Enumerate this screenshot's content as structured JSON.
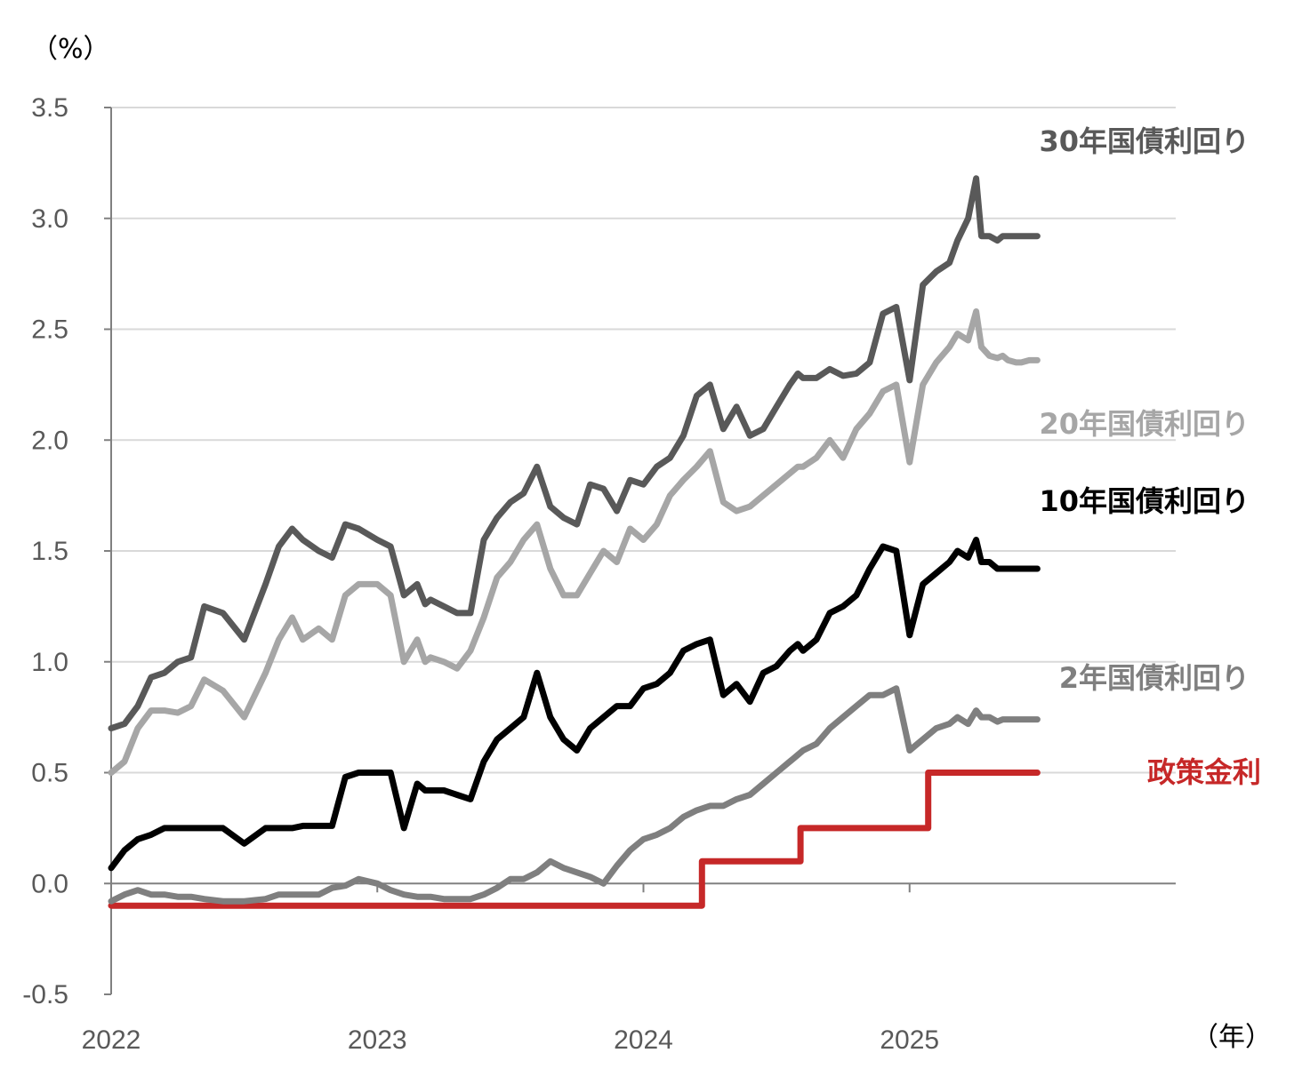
{
  "chart_data": {
    "type": "line",
    "y_unit_label": "（%）",
    "x_unit_label": "（年）",
    "ylim": [
      -0.5,
      3.5
    ],
    "yticks": [
      "3.5",
      "3.0",
      "2.5",
      "2.0",
      "1.5",
      "1.0",
      "0.5",
      "0.0",
      "-0.5"
    ],
    "ytick_values": [
      3.5,
      3.0,
      2.5,
      2.0,
      1.5,
      1.0,
      0.5,
      0.0,
      -0.5
    ],
    "negative_tick_color": "#e00000",
    "xlim": [
      2022.0,
      2026.0
    ],
    "xticks": [
      "2022",
      "2023",
      "2024",
      "2025"
    ],
    "xtick_values": [
      2022,
      2023,
      2024,
      2025
    ],
    "grid": true,
    "series": [
      {
        "name": "30年国債利回り",
        "color": "#595959",
        "x": [
          2022.0,
          2022.05,
          2022.1,
          2022.15,
          2022.2,
          2022.25,
          2022.3,
          2022.35,
          2022.42,
          2022.5,
          2022.58,
          2022.63,
          2022.68,
          2022.72,
          2022.78,
          2022.83,
          2022.88,
          2022.93,
          2023.0,
          2023.05,
          2023.1,
          2023.15,
          2023.18,
          2023.2,
          2023.25,
          2023.3,
          2023.35,
          2023.4,
          2023.45,
          2023.5,
          2023.55,
          2023.6,
          2023.65,
          2023.7,
          2023.75,
          2023.8,
          2023.85,
          2023.9,
          2023.95,
          2024.0,
          2024.05,
          2024.1,
          2024.15,
          2024.2,
          2024.25,
          2024.3,
          2024.35,
          2024.4,
          2024.45,
          2024.5,
          2024.55,
          2024.58,
          2024.6,
          2024.65,
          2024.7,
          2024.75,
          2024.8,
          2024.85,
          2024.9,
          2024.95,
          2025.0,
          2025.05,
          2025.1,
          2025.15,
          2025.18,
          2025.22,
          2025.25,
          2025.27,
          2025.3,
          2025.33,
          2025.35,
          2025.37,
          2025.4,
          2025.42,
          2025.45,
          2025.48
        ],
        "values": [
          0.7,
          0.72,
          0.8,
          0.93,
          0.95,
          1.0,
          1.02,
          1.25,
          1.22,
          1.1,
          1.35,
          1.52,
          1.6,
          1.55,
          1.5,
          1.47,
          1.62,
          1.6,
          1.55,
          1.52,
          1.3,
          1.35,
          1.26,
          1.28,
          1.25,
          1.22,
          1.22,
          1.55,
          1.65,
          1.72,
          1.76,
          1.88,
          1.7,
          1.65,
          1.62,
          1.8,
          1.78,
          1.68,
          1.82,
          1.8,
          1.88,
          1.92,
          2.02,
          2.2,
          2.25,
          2.05,
          2.15,
          2.02,
          2.05,
          2.15,
          2.25,
          2.3,
          2.28,
          2.28,
          2.32,
          2.29,
          2.3,
          2.35,
          2.57,
          2.6,
          2.27,
          2.7,
          2.76,
          2.8,
          2.9,
          3.0,
          3.18,
          2.92,
          2.92,
          2.9,
          2.92,
          2.92,
          2.92,
          2.92,
          2.92,
          2.92
        ]
      },
      {
        "name": "20年国債利回り",
        "color": "#a6a6a6",
        "x": [
          2022.0,
          2022.05,
          2022.1,
          2022.15,
          2022.2,
          2022.25,
          2022.3,
          2022.35,
          2022.42,
          2022.5,
          2022.58,
          2022.63,
          2022.68,
          2022.72,
          2022.78,
          2022.83,
          2022.88,
          2022.93,
          2023.0,
          2023.05,
          2023.1,
          2023.15,
          2023.18,
          2023.2,
          2023.25,
          2023.3,
          2023.35,
          2023.4,
          2023.45,
          2023.5,
          2023.55,
          2023.6,
          2023.65,
          2023.7,
          2023.75,
          2023.8,
          2023.85,
          2023.9,
          2023.95,
          2024.0,
          2024.05,
          2024.1,
          2024.15,
          2024.2,
          2024.25,
          2024.3,
          2024.35,
          2024.4,
          2024.45,
          2024.5,
          2024.55,
          2024.58,
          2024.6,
          2024.65,
          2024.7,
          2024.75,
          2024.8,
          2024.85,
          2024.9,
          2024.95,
          2025.0,
          2025.05,
          2025.1,
          2025.15,
          2025.18,
          2025.22,
          2025.25,
          2025.27,
          2025.3,
          2025.33,
          2025.35,
          2025.37,
          2025.4,
          2025.42,
          2025.45,
          2025.48
        ],
        "values": [
          0.5,
          0.55,
          0.7,
          0.78,
          0.78,
          0.77,
          0.8,
          0.92,
          0.87,
          0.75,
          0.95,
          1.1,
          1.2,
          1.1,
          1.15,
          1.1,
          1.3,
          1.35,
          1.35,
          1.3,
          1.0,
          1.1,
          1.0,
          1.02,
          1.0,
          0.97,
          1.05,
          1.2,
          1.38,
          1.45,
          1.55,
          1.62,
          1.42,
          1.3,
          1.3,
          1.4,
          1.5,
          1.45,
          1.6,
          1.55,
          1.62,
          1.75,
          1.82,
          1.88,
          1.95,
          1.72,
          1.68,
          1.7,
          1.75,
          1.8,
          1.85,
          1.88,
          1.88,
          1.92,
          2.0,
          1.92,
          2.05,
          2.12,
          2.22,
          2.25,
          1.9,
          2.25,
          2.35,
          2.42,
          2.48,
          2.45,
          2.58,
          2.42,
          2.38,
          2.37,
          2.38,
          2.36,
          2.35,
          2.35,
          2.36,
          2.36
        ]
      },
      {
        "name": "10年国債利回り",
        "color": "#000000",
        "x": [
          2022.0,
          2022.05,
          2022.1,
          2022.15,
          2022.2,
          2022.25,
          2022.3,
          2022.35,
          2022.42,
          2022.5,
          2022.58,
          2022.63,
          2022.68,
          2022.72,
          2022.78,
          2022.83,
          2022.88,
          2022.93,
          2023.0,
          2023.05,
          2023.1,
          2023.15,
          2023.18,
          2023.2,
          2023.25,
          2023.3,
          2023.35,
          2023.4,
          2023.45,
          2023.5,
          2023.55,
          2023.6,
          2023.65,
          2023.7,
          2023.75,
          2023.8,
          2023.85,
          2023.9,
          2023.95,
          2024.0,
          2024.05,
          2024.1,
          2024.15,
          2024.2,
          2024.25,
          2024.3,
          2024.35,
          2024.4,
          2024.45,
          2024.5,
          2024.55,
          2024.58,
          2024.6,
          2024.65,
          2024.7,
          2024.75,
          2024.8,
          2024.85,
          2024.9,
          2024.95,
          2025.0,
          2025.05,
          2025.1,
          2025.15,
          2025.18,
          2025.22,
          2025.25,
          2025.27,
          2025.3,
          2025.33,
          2025.35,
          2025.37,
          2025.4,
          2025.42,
          2025.45,
          2025.48
        ],
        "values": [
          0.07,
          0.15,
          0.2,
          0.22,
          0.25,
          0.25,
          0.25,
          0.25,
          0.25,
          0.18,
          0.25,
          0.25,
          0.25,
          0.26,
          0.26,
          0.26,
          0.48,
          0.5,
          0.5,
          0.5,
          0.25,
          0.45,
          0.42,
          0.42,
          0.42,
          0.4,
          0.38,
          0.55,
          0.65,
          0.7,
          0.75,
          0.95,
          0.75,
          0.65,
          0.6,
          0.7,
          0.75,
          0.8,
          0.8,
          0.88,
          0.9,
          0.95,
          1.05,
          1.08,
          1.1,
          0.85,
          0.9,
          0.82,
          0.95,
          0.98,
          1.05,
          1.08,
          1.05,
          1.1,
          1.22,
          1.25,
          1.3,
          1.42,
          1.52,
          1.5,
          1.12,
          1.35,
          1.4,
          1.45,
          1.5,
          1.47,
          1.55,
          1.45,
          1.45,
          1.42,
          1.42,
          1.42,
          1.42,
          1.42,
          1.42,
          1.42
        ]
      },
      {
        "name": "2年国債利回り",
        "color": "#7f7f7f",
        "x": [
          2022.0,
          2022.05,
          2022.1,
          2022.15,
          2022.2,
          2022.25,
          2022.3,
          2022.35,
          2022.42,
          2022.5,
          2022.58,
          2022.63,
          2022.68,
          2022.72,
          2022.78,
          2022.83,
          2022.88,
          2022.93,
          2023.0,
          2023.05,
          2023.1,
          2023.15,
          2023.18,
          2023.2,
          2023.25,
          2023.3,
          2023.35,
          2023.4,
          2023.45,
          2023.5,
          2023.55,
          2023.6,
          2023.65,
          2023.7,
          2023.75,
          2023.8,
          2023.85,
          2023.9,
          2023.95,
          2024.0,
          2024.05,
          2024.1,
          2024.15,
          2024.2,
          2024.25,
          2024.3,
          2024.35,
          2024.4,
          2024.45,
          2024.5,
          2024.55,
          2024.58,
          2024.6,
          2024.65,
          2024.7,
          2024.75,
          2024.8,
          2024.85,
          2024.9,
          2024.95,
          2025.0,
          2025.05,
          2025.1,
          2025.15,
          2025.18,
          2025.22,
          2025.25,
          2025.27,
          2025.3,
          2025.33,
          2025.35,
          2025.37,
          2025.4,
          2025.42,
          2025.45,
          2025.48
        ],
        "values": [
          -0.08,
          -0.05,
          -0.03,
          -0.05,
          -0.05,
          -0.06,
          -0.06,
          -0.07,
          -0.08,
          -0.08,
          -0.07,
          -0.05,
          -0.05,
          -0.05,
          -0.05,
          -0.02,
          -0.01,
          0.02,
          0.0,
          -0.03,
          -0.05,
          -0.06,
          -0.06,
          -0.06,
          -0.07,
          -0.07,
          -0.07,
          -0.05,
          -0.02,
          0.02,
          0.02,
          0.05,
          0.1,
          0.07,
          0.05,
          0.03,
          0.0,
          0.08,
          0.15,
          0.2,
          0.22,
          0.25,
          0.3,
          0.33,
          0.35,
          0.35,
          0.38,
          0.4,
          0.45,
          0.5,
          0.55,
          0.58,
          0.6,
          0.63,
          0.7,
          0.75,
          0.8,
          0.85,
          0.85,
          0.88,
          0.6,
          0.65,
          0.7,
          0.72,
          0.75,
          0.72,
          0.78,
          0.75,
          0.75,
          0.73,
          0.74,
          0.74,
          0.74,
          0.74,
          0.74,
          0.74
        ]
      },
      {
        "name": "政策金利",
        "color": "#c62828",
        "step": true,
        "x": [
          2022.0,
          2024.22,
          2024.22,
          2024.59,
          2024.59,
          2025.07,
          2025.07,
          2025.48
        ],
        "values": [
          -0.1,
          -0.1,
          0.1,
          0.1,
          0.25,
          0.25,
          0.5,
          0.5
        ]
      }
    ]
  }
}
